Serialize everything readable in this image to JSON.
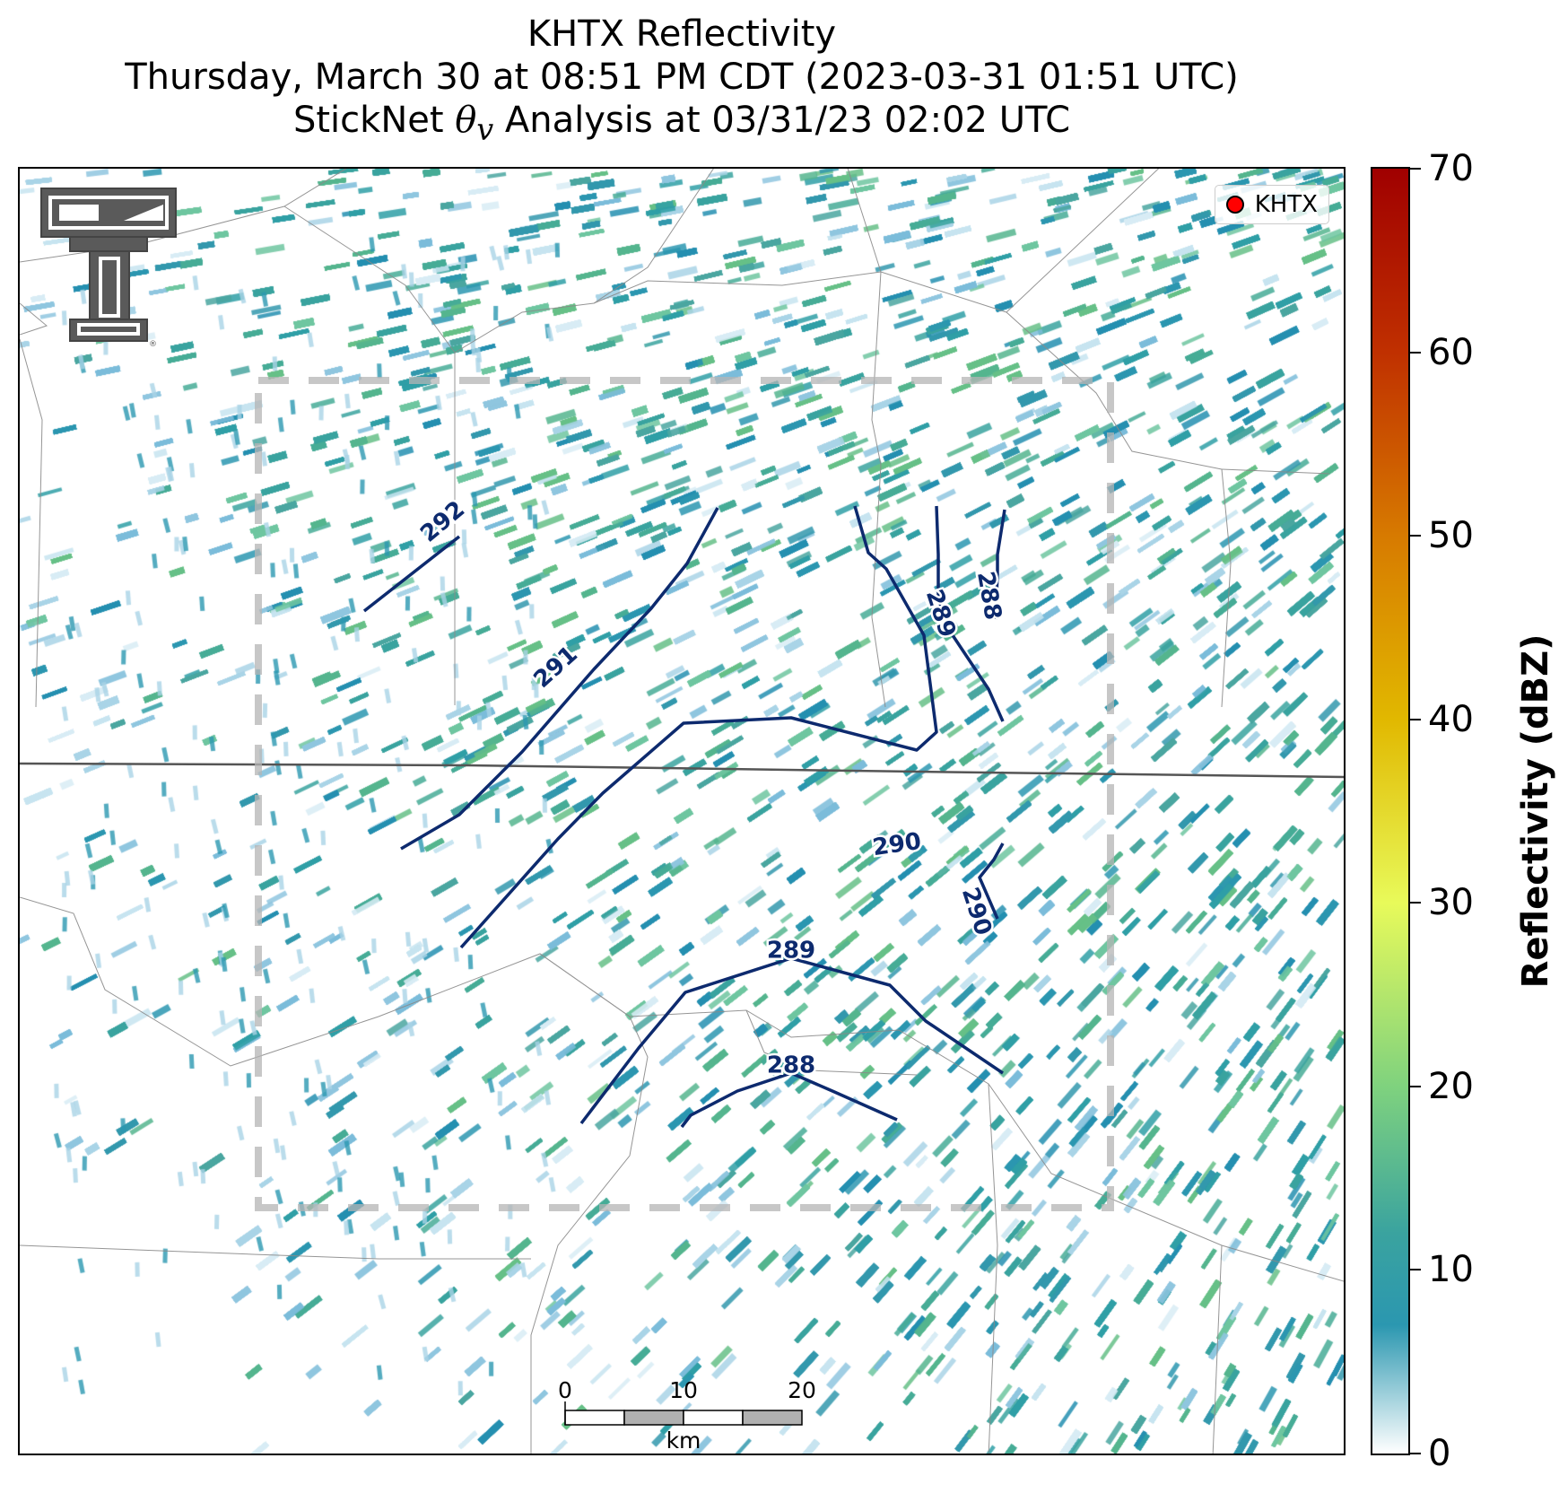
{
  "title": {
    "line1": "KHTX Reflectivity",
    "line2": "Thursday, March 30 at 08:51 PM CDT (2023-03-31 01:51 UTC)",
    "line3_prefix": "StickNet ",
    "line3_symbol": "θ",
    "line3_subscript": "v",
    "line3_suffix": " Analysis at 03/31/23 02:02 UTC"
  },
  "legend": {
    "label": "KHTX",
    "marker_color": "#ff0000"
  },
  "colorbar": {
    "label": "Reflectivity (dBZ)",
    "range": [
      0,
      70
    ],
    "ticks": [
      "0",
      "10",
      "20",
      "30",
      "40",
      "50",
      "60",
      "70"
    ],
    "colormap": [
      {
        "value": 0,
        "color": "#ffffff"
      },
      {
        "value": 7,
        "color": "#2b97b0"
      },
      {
        "value": 12,
        "color": "#3aa39f"
      },
      {
        "value": 20,
        "color": "#7fd27e"
      },
      {
        "value": 30,
        "color": "#e8fa5a"
      },
      {
        "value": 40,
        "color": "#e1b800"
      },
      {
        "value": 50,
        "color": "#d77a00"
      },
      {
        "value": 60,
        "color": "#c03000"
      },
      {
        "value": 70,
        "color": "#a00000"
      }
    ]
  },
  "contours": [
    {
      "label": "292"
    },
    {
      "label": "291"
    },
    {
      "label": "290"
    },
    {
      "label": "290"
    },
    {
      "label": "289"
    },
    {
      "label": "289"
    },
    {
      "label": "288"
    },
    {
      "label": "288"
    }
  ],
  "scalebar": {
    "ticks": [
      "0",
      "10",
      "20"
    ],
    "unit": "km"
  },
  "colors": {
    "contour": "#0d2a6e",
    "analysis_box": "#b4b4b4",
    "county_lines": "#8a8a8a",
    "state_line": "#555555"
  },
  "logo": {
    "icon": "texas-tech-double-t-logo"
  }
}
